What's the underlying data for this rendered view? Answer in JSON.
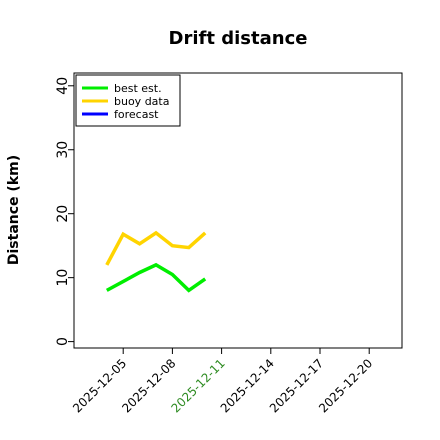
{
  "chart_data": {
    "type": "line",
    "title": "Drift distance",
    "xlabel": "",
    "ylabel": "Distance (km)",
    "ylim": [
      -1,
      42
    ],
    "xlim": [
      "2025-12-02",
      "2025-12-22"
    ],
    "y_ticks": [
      0,
      10,
      20,
      30,
      40
    ],
    "x_ticks": [
      {
        "label": "2025-12-05",
        "date": "2025-12-05",
        "color": "#000000"
      },
      {
        "label": "2025-12-08",
        "date": "2025-12-08",
        "color": "#000000"
      },
      {
        "label": "2025-12-11",
        "date": "2025-12-11",
        "color": "#2e8b22"
      },
      {
        "label": "2025-12-14",
        "date": "2025-12-14",
        "color": "#000000"
      },
      {
        "label": "2025-12-17",
        "date": "2025-12-17",
        "color": "#000000"
      },
      {
        "label": "2025-12-20",
        "date": "2025-12-20",
        "color": "#000000"
      }
    ],
    "grid": false,
    "legend_position": "top-left",
    "series": [
      {
        "name": "best est.",
        "color": "#00ee00",
        "points": [
          {
            "x": "2025-12-04",
            "y": 8
          },
          {
            "x": "2025-12-06",
            "y": 10.8
          },
          {
            "x": "2025-12-07",
            "y": 12
          },
          {
            "x": "2025-12-08",
            "y": 10.5
          },
          {
            "x": "2025-12-09",
            "y": 8
          },
          {
            "x": "2025-12-10",
            "y": 9.8
          }
        ]
      },
      {
        "name": "buoy data",
        "color": "#ffd400",
        "points": [
          {
            "x": "2025-12-04",
            "y": 12
          },
          {
            "x": "2025-12-05",
            "y": 16.8
          },
          {
            "x": "2025-12-06",
            "y": 15.3
          },
          {
            "x": "2025-12-07",
            "y": 17
          },
          {
            "x": "2025-12-08",
            "y": 15
          },
          {
            "x": "2025-12-09",
            "y": 14.7
          },
          {
            "x": "2025-12-10",
            "y": 17
          }
        ]
      },
      {
        "name": "forecast",
        "color": "#0000ff",
        "points": []
      }
    ]
  }
}
